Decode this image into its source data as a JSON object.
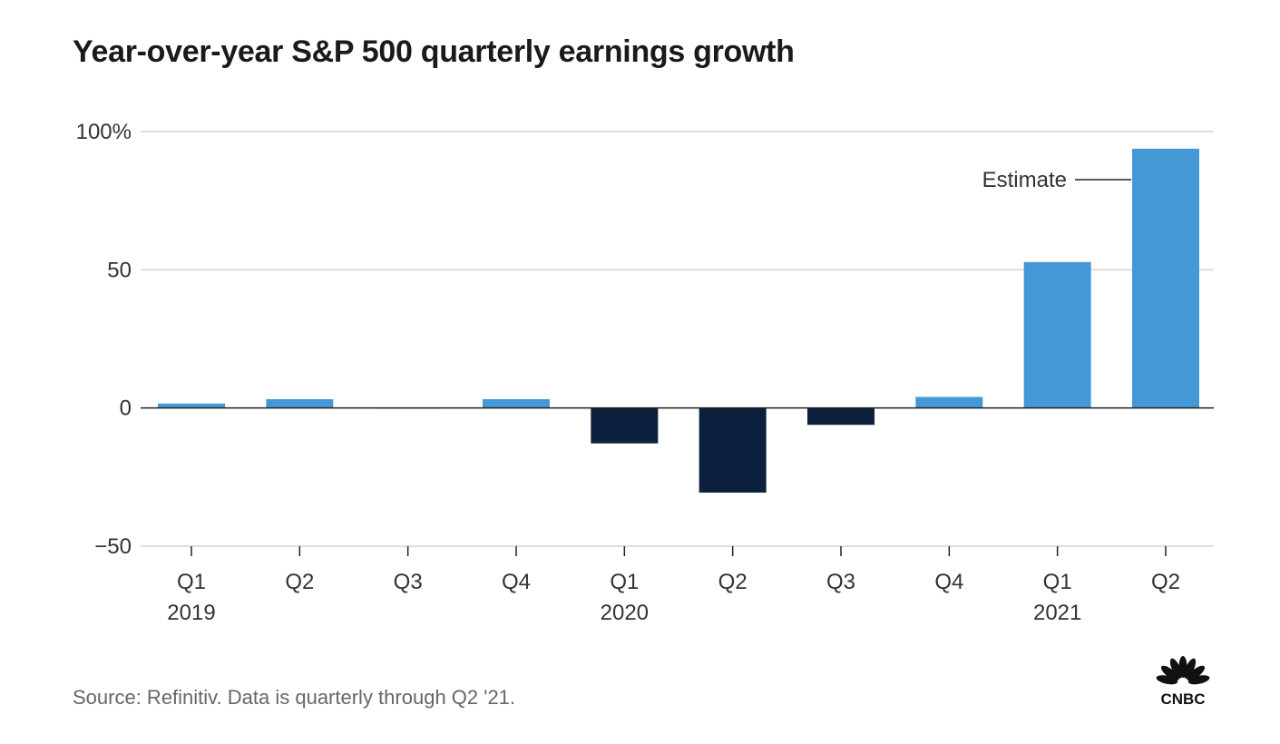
{
  "chart_data": {
    "type": "bar",
    "title": "Year-over-year S&P 500 quarterly earnings growth",
    "xlabel": "",
    "ylabel": "",
    "ylim": [
      -50,
      100
    ],
    "yticks": [
      {
        "value": 100,
        "label": "100%"
      },
      {
        "value": 50,
        "label": "50"
      },
      {
        "value": 0,
        "label": "0"
      },
      {
        "value": -50,
        "label": "−50"
      }
    ],
    "categories": [
      "Q1",
      "Q2",
      "Q3",
      "Q4",
      "Q1",
      "Q2",
      "Q3",
      "Q4",
      "Q1",
      "Q2"
    ],
    "years": [
      "2019",
      "",
      "",
      "",
      "2020",
      "",
      "",
      "",
      "2021",
      ""
    ],
    "values": [
      1.6,
      3.2,
      -0.1,
      3.2,
      -12.8,
      -30.6,
      -6.1,
      4.0,
      52.8,
      93.8
    ],
    "grid": true,
    "annotations": [
      {
        "text": "Estimate",
        "category_index": 9
      }
    ]
  },
  "colors": {
    "positive": "#4598d6",
    "negative": "#0c1f3d",
    "grid": "#d4d4d4",
    "axis": "#222222"
  },
  "source": "Source: Refinitiv. Data is quarterly through Q2 '21.",
  "logo_text": "CNBC"
}
